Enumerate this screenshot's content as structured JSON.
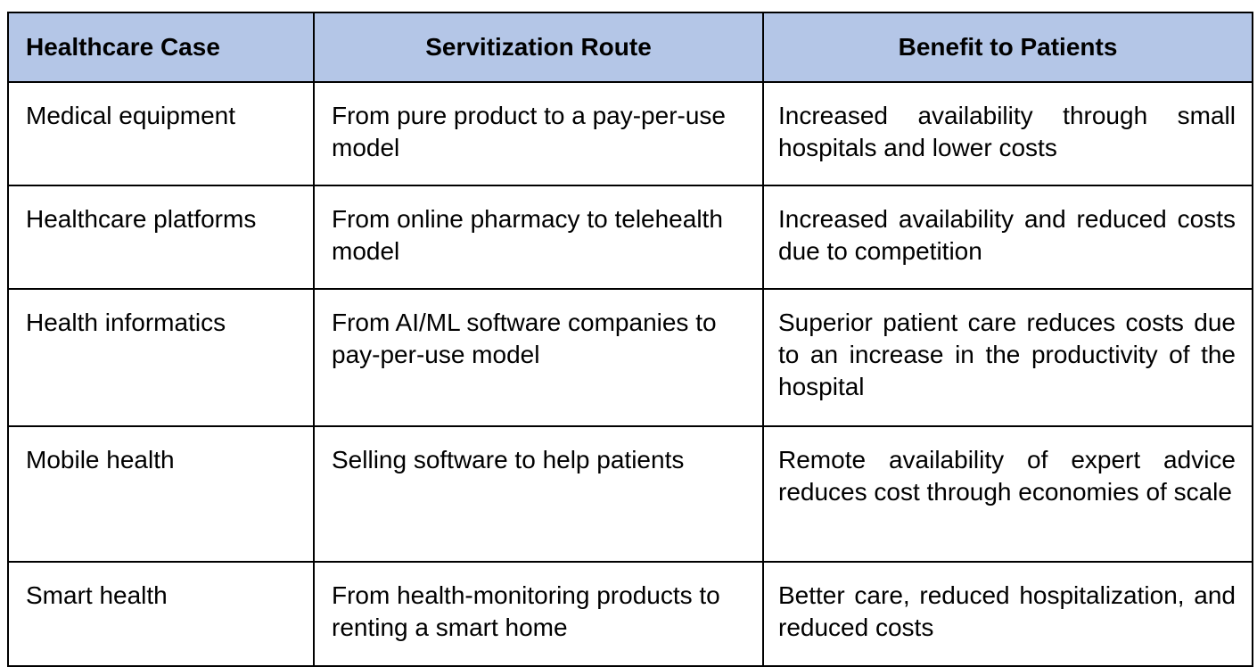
{
  "table": {
    "headers": [
      "Healthcare Case",
      "Servitization Route",
      "Benefit to Patients"
    ],
    "rows": [
      [
        "Medical equipment",
        "From pure product to a pay-per-use model",
        "Increased availability through small hospitals and lower costs"
      ],
      [
        "Healthcare platforms",
        "From online pharmacy to telehealth model",
        "Increased availability and reduced costs due to competition"
      ],
      [
        "Health informatics",
        "From AI/ML software companies to pay-per-use model",
        "Superior patient care reduces costs due to an increase in the productivity of the hospital"
      ],
      [
        "Mobile health",
        "Selling software to help patients",
        "Remote availability of expert advice reduces cost through economies of scale"
      ],
      [
        "Smart health",
        "From health-monitoring products to renting a smart home",
        "Better care, reduced hospitalization, and reduced costs"
      ]
    ]
  },
  "colors": {
    "header_background": "#b4c6e7",
    "border": "#000000"
  }
}
